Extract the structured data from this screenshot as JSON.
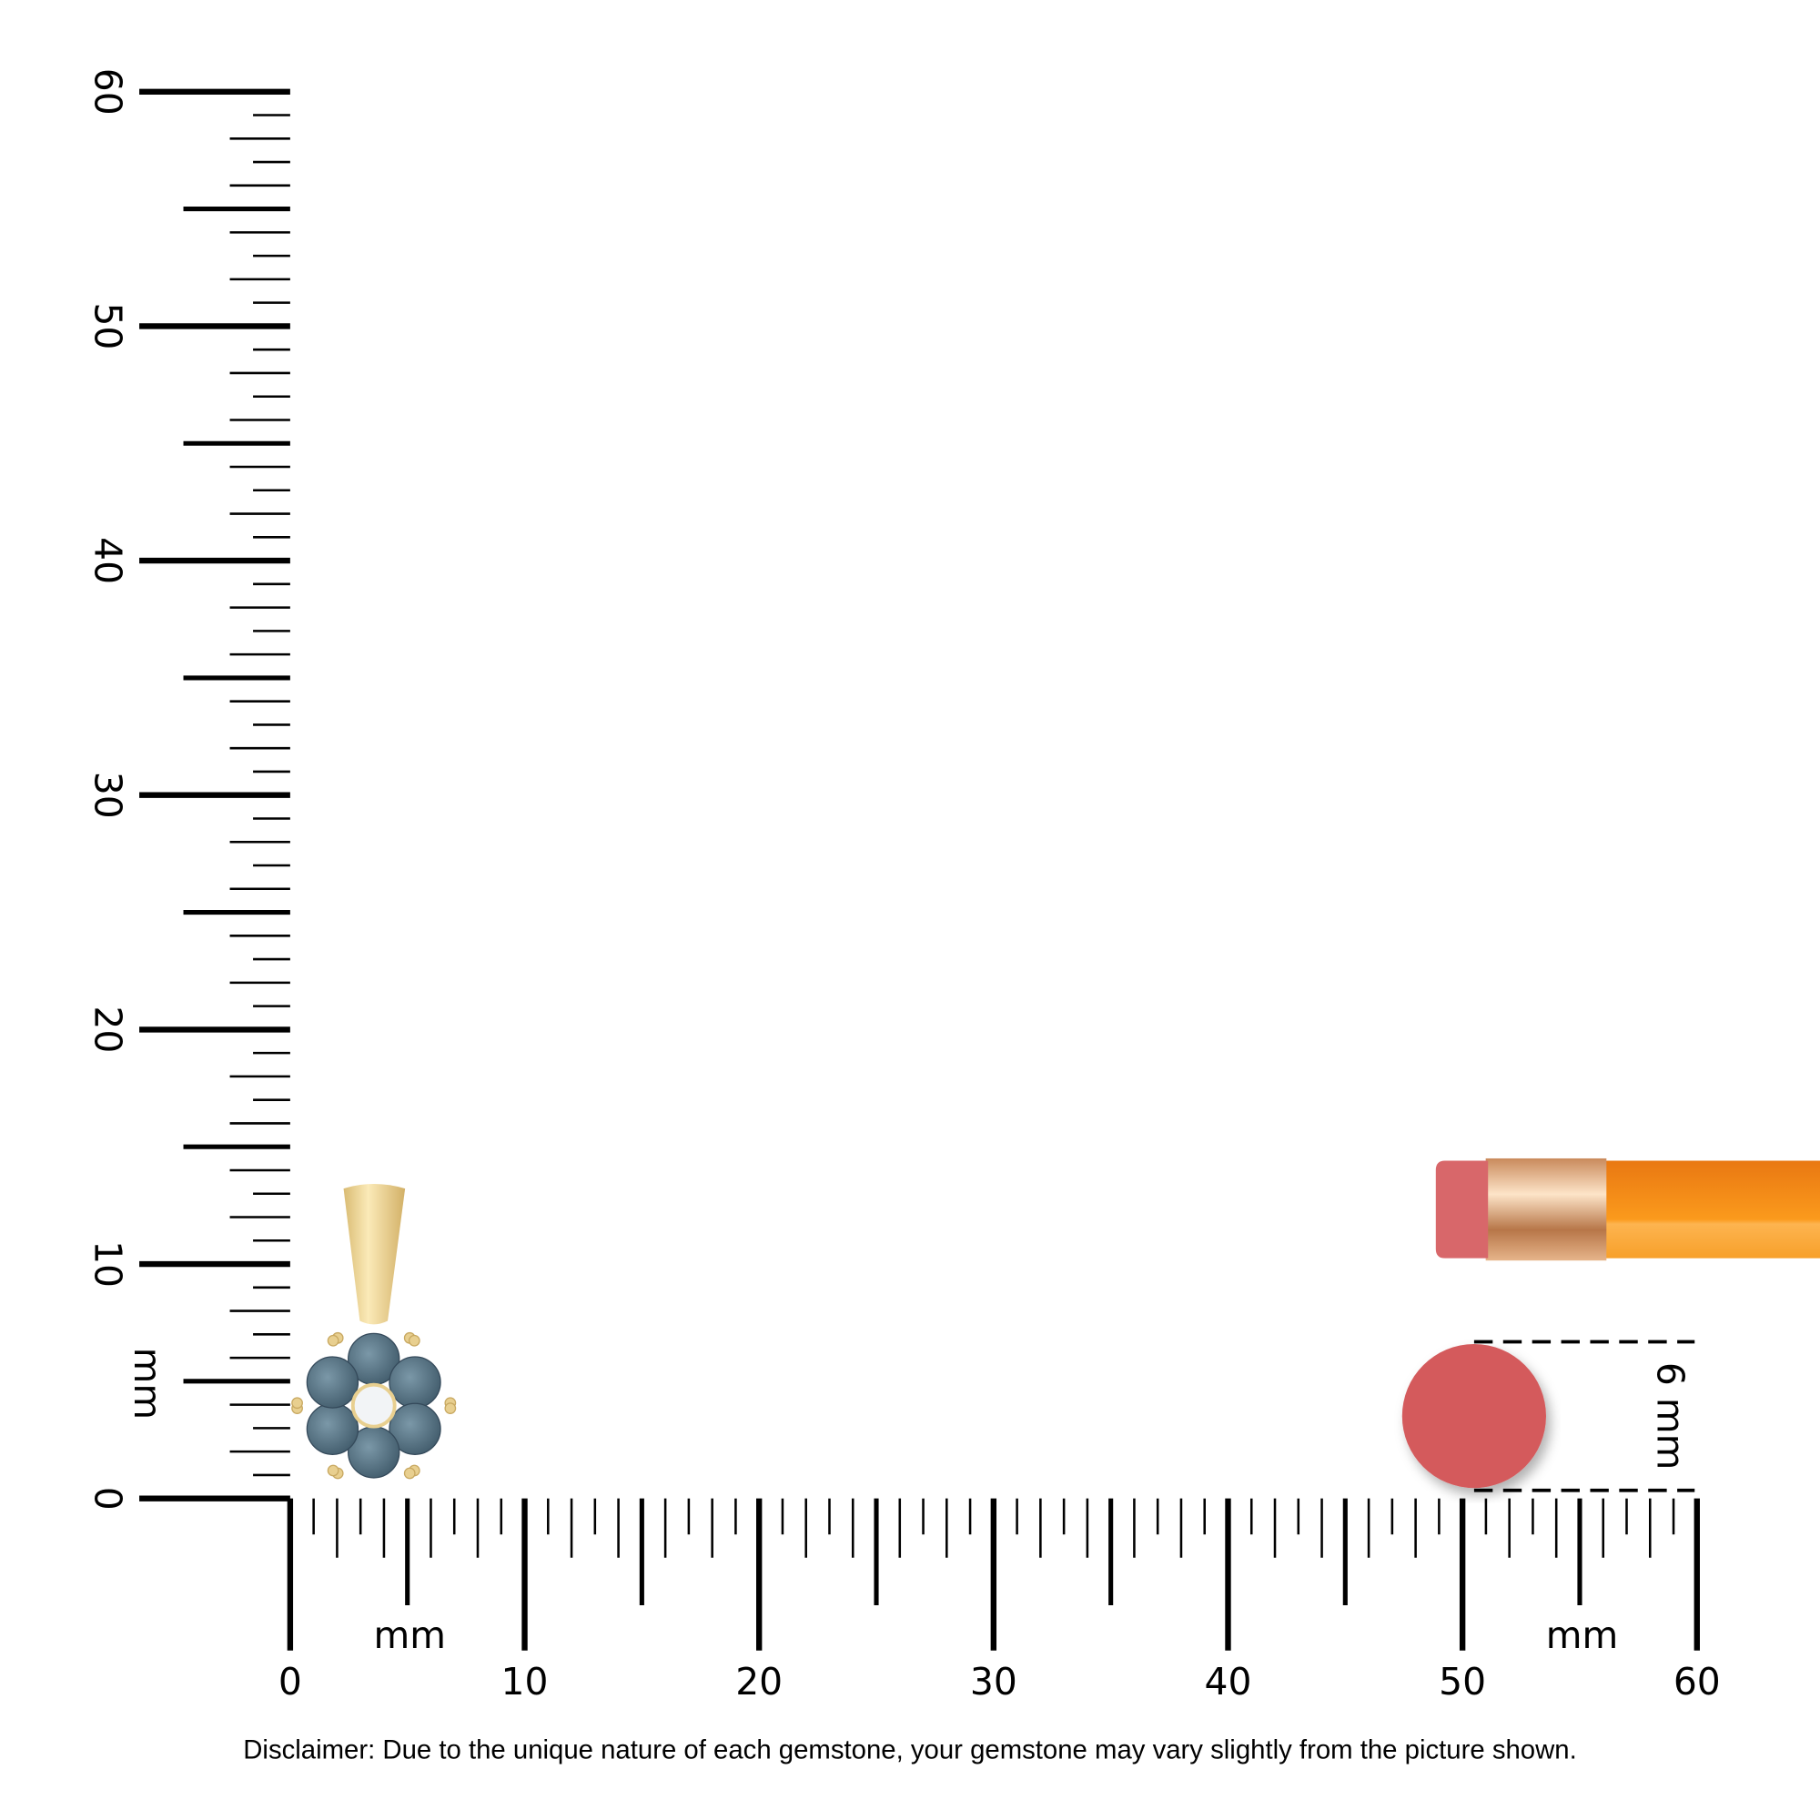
{
  "rulers": {
    "unit_label": "mm",
    "vertical": {
      "min": 0,
      "max": 60,
      "labels": [
        "0",
        "10",
        "20",
        "30",
        "40",
        "50",
        "60"
      ]
    },
    "horizontal": {
      "min": 0,
      "max": 60,
      "labels": [
        "0",
        "10",
        "20",
        "30",
        "40",
        "50",
        "60"
      ]
    }
  },
  "reference": {
    "eraser_size_label": "6 mm"
  },
  "disclaimer": "Disclaimer: Due to the unique nature of each gemstone, your gemstone may vary slightly from the picture shown.",
  "colors": {
    "gold": "#e8cf8f",
    "gemstone": "#4f6b7c",
    "center_stone": "#f2f4f6",
    "eraser": "#d45a5c",
    "pencil_body": "#f7931e",
    "ferrule": "#e0a67a"
  }
}
